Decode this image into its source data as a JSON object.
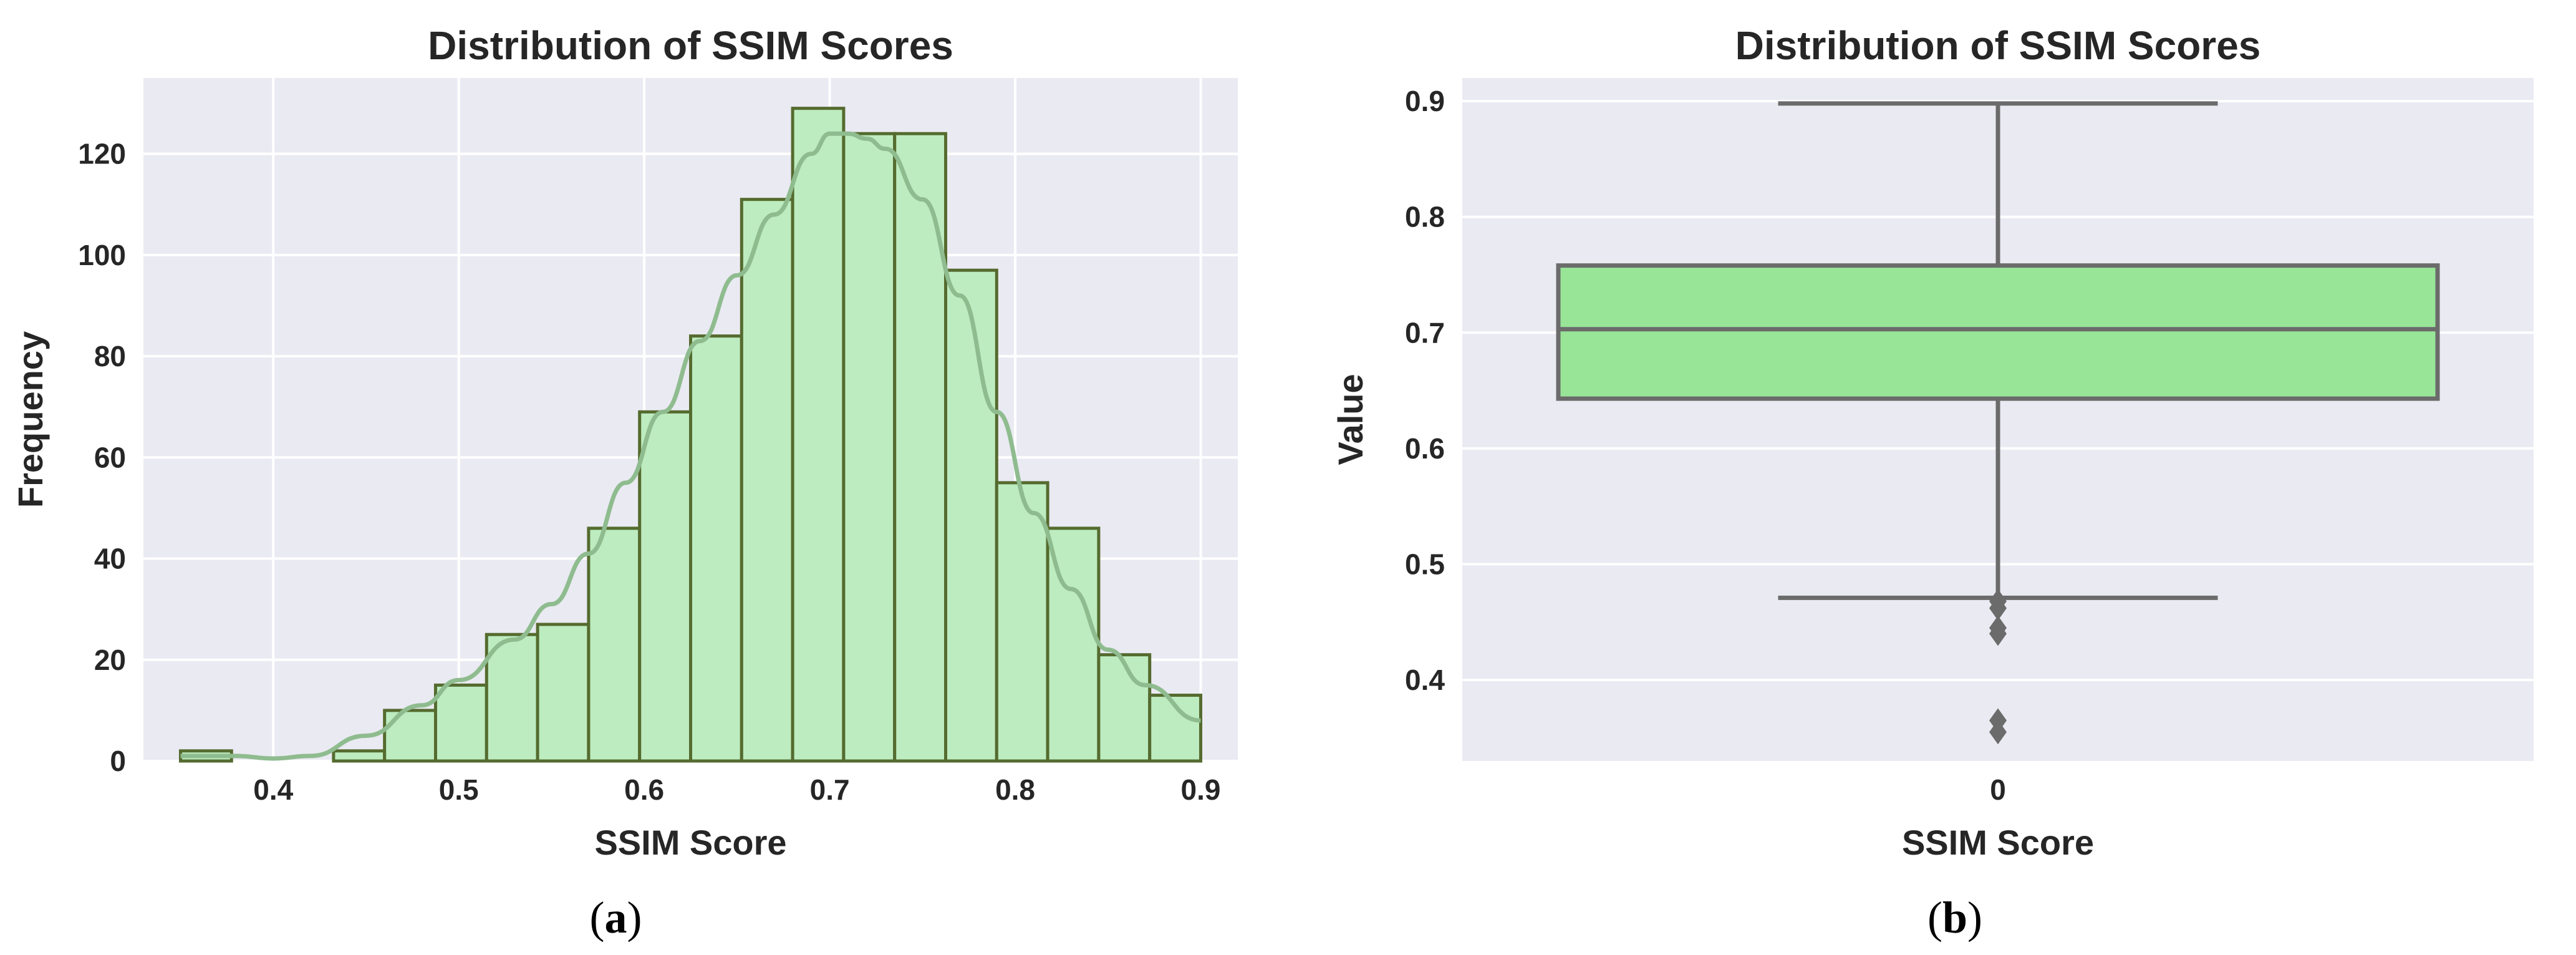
{
  "colors": {
    "plot_bg": "#eaeaf2",
    "grid": "#ffffff",
    "hist_fill": "#bdecc0",
    "hist_edge": "#556b2f",
    "kde": "#8fbc8f",
    "box_fill": "#98e598",
    "box_line": "#6b6b6b"
  },
  "chart_data": [
    {
      "id": "a",
      "type": "histogram",
      "title": "Distribution of SSIM Scores",
      "xlabel": "SSIM Score",
      "ylabel": "Frequency",
      "xlim": [
        0.33,
        0.92
      ],
      "ylim": [
        0,
        135
      ],
      "xticks": [
        0.4,
        0.5,
        0.6,
        0.7,
        0.8,
        0.9
      ],
      "xtick_labels": [
        "0.4",
        "0.5",
        "0.6",
        "0.7",
        "0.8",
        "0.9"
      ],
      "yticks": [
        0,
        20,
        40,
        60,
        80,
        100,
        120
      ],
      "ytick_labels": [
        "0",
        "20",
        "40",
        "60",
        "80",
        "100",
        "120"
      ],
      "bin_start": 0.35,
      "bin_width": 0.0275,
      "counts": [
        2,
        0,
        0,
        2,
        10,
        15,
        25,
        27,
        46,
        69,
        84,
        111,
        129,
        124,
        124,
        97,
        55,
        46,
        21,
        13
      ],
      "kde": {
        "x": [
          0.35,
          0.38,
          0.4,
          0.42,
          0.45,
          0.48,
          0.5,
          0.53,
          0.55,
          0.57,
          0.59,
          0.61,
          0.63,
          0.65,
          0.67,
          0.69,
          0.7,
          0.71,
          0.72,
          0.73,
          0.75,
          0.77,
          0.79,
          0.81,
          0.83,
          0.85,
          0.87,
          0.9
        ],
        "y": [
          1,
          1,
          0.5,
          1,
          5,
          11,
          16,
          24,
          31,
          41,
          55,
          69,
          83,
          96,
          108,
          120,
          124,
          124,
          123,
          121,
          111,
          92,
          69,
          49,
          34,
          22,
          15,
          8
        ]
      },
      "panel_label": "(a)"
    },
    {
      "id": "b",
      "type": "box",
      "title": "Distribution of SSIM Scores",
      "xlabel": "SSIM Score",
      "ylabel": "Value",
      "categories": [
        "0"
      ],
      "ylim": [
        0.33,
        0.92
      ],
      "yticks": [
        0.4,
        0.5,
        0.6,
        0.7,
        0.8,
        0.9
      ],
      "ytick_labels": [
        "0.4",
        "0.5",
        "0.6",
        "0.7",
        "0.8",
        "0.9"
      ],
      "box": {
        "q1": 0.643,
        "median": 0.703,
        "q3": 0.758,
        "whisker_low": 0.471,
        "whisker_high": 0.898
      },
      "outliers": [
        0.468,
        0.462,
        0.445,
        0.44,
        0.365,
        0.355
      ],
      "panel_label": "(b)"
    }
  ]
}
